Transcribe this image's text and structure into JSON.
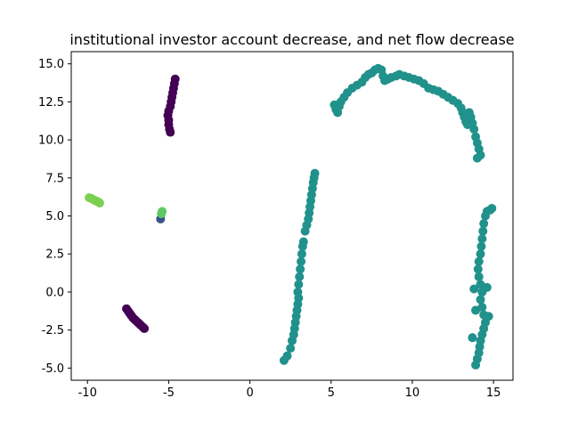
{
  "chart_data": {
    "type": "scatter",
    "title": "institutional investor account decrease, and net flow decrease",
    "xlabel": "",
    "ylabel": "",
    "xlim": [
      -11.0,
      16.2
    ],
    "ylim": [
      -5.8,
      15.8
    ],
    "xticks": [
      -10,
      -5,
      0,
      5,
      10,
      15
    ],
    "yticks": [
      -5.0,
      -2.5,
      0.0,
      2.5,
      5.0,
      7.5,
      10.0,
      12.5,
      15.0
    ],
    "grid": false,
    "legend": "none",
    "series": [
      {
        "color": "#440154",
        "points": [
          [
            -4.6,
            14.0
          ],
          [
            -4.65,
            13.7
          ],
          [
            -4.7,
            13.4
          ],
          [
            -4.75,
            13.1
          ],
          [
            -4.8,
            12.8
          ],
          [
            -4.85,
            12.5
          ],
          [
            -4.9,
            12.2
          ],
          [
            -5.0,
            11.9
          ],
          [
            -5.05,
            11.6
          ],
          [
            -5.0,
            11.3
          ],
          [
            -5.0,
            11.0
          ],
          [
            -4.95,
            10.7
          ],
          [
            -4.9,
            10.5
          ],
          [
            -7.6,
            -1.1
          ],
          [
            -7.5,
            -1.25
          ],
          [
            -7.4,
            -1.4
          ],
          [
            -7.3,
            -1.55
          ],
          [
            -7.2,
            -1.7
          ],
          [
            -7.1,
            -1.8
          ],
          [
            -7.0,
            -1.9
          ],
          [
            -6.9,
            -2.0
          ],
          [
            -6.8,
            -2.1
          ],
          [
            -6.7,
            -2.2
          ],
          [
            -6.6,
            -2.3
          ],
          [
            -6.5,
            -2.4
          ]
        ]
      },
      {
        "color": "#3b528b",
        "points": [
          [
            -5.5,
            4.8
          ]
        ]
      },
      {
        "color": "#21918c",
        "points": [
          [
            5.2,
            12.3
          ],
          [
            5.3,
            12.0
          ],
          [
            5.4,
            11.8
          ],
          [
            5.5,
            12.2
          ],
          [
            5.6,
            12.5
          ],
          [
            5.8,
            12.8
          ],
          [
            6.0,
            13.1
          ],
          [
            6.3,
            13.4
          ],
          [
            6.6,
            13.6
          ],
          [
            6.9,
            13.8
          ],
          [
            7.1,
            14.1
          ],
          [
            7.3,
            14.3
          ],
          [
            7.5,
            14.4
          ],
          [
            7.7,
            14.6
          ],
          [
            7.9,
            14.7
          ],
          [
            8.1,
            14.6
          ],
          [
            8.2,
            14.2
          ],
          [
            8.3,
            13.9
          ],
          [
            8.5,
            14.0
          ],
          [
            8.7,
            14.1
          ],
          [
            9.0,
            14.2
          ],
          [
            9.2,
            14.3
          ],
          [
            9.5,
            14.2
          ],
          [
            9.8,
            14.1
          ],
          [
            10.1,
            14.0
          ],
          [
            10.4,
            13.9
          ],
          [
            10.7,
            13.7
          ],
          [
            11.0,
            13.4
          ],
          [
            11.3,
            13.3
          ],
          [
            11.6,
            13.2
          ],
          [
            11.9,
            13.0
          ],
          [
            12.2,
            12.8
          ],
          [
            12.5,
            12.6
          ],
          [
            12.8,
            12.4
          ],
          [
            13.0,
            12.1
          ],
          [
            13.1,
            11.8
          ],
          [
            13.2,
            11.5
          ],
          [
            13.3,
            11.2
          ],
          [
            13.4,
            11.0
          ],
          [
            13.5,
            11.8
          ],
          [
            13.6,
            11.5
          ],
          [
            13.7,
            11.1
          ],
          [
            13.8,
            10.7
          ],
          [
            13.9,
            10.2
          ],
          [
            14.0,
            9.8
          ],
          [
            14.1,
            9.4
          ],
          [
            14.2,
            9.0
          ],
          [
            14.0,
            8.8
          ],
          [
            2.1,
            -4.5
          ],
          [
            2.3,
            -4.2
          ],
          [
            2.5,
            -3.7
          ],
          [
            2.6,
            -3.2
          ],
          [
            2.7,
            -2.8
          ],
          [
            2.75,
            -2.4
          ],
          [
            2.8,
            -2.0
          ],
          [
            2.85,
            -1.6
          ],
          [
            2.9,
            -1.2
          ],
          [
            2.95,
            -0.8
          ],
          [
            3.0,
            -0.4
          ],
          [
            2.95,
            0.0
          ],
          [
            3.0,
            0.5
          ],
          [
            3.05,
            1.0
          ],
          [
            3.1,
            1.5
          ],
          [
            3.15,
            2.0
          ],
          [
            3.2,
            2.5
          ],
          [
            3.25,
            3.0
          ],
          [
            3.3,
            3.3
          ],
          [
            3.4,
            4.0
          ],
          [
            3.5,
            4.4
          ],
          [
            3.6,
            4.8
          ],
          [
            3.65,
            5.2
          ],
          [
            3.7,
            5.6
          ],
          [
            3.75,
            6.0
          ],
          [
            3.8,
            6.4
          ],
          [
            3.85,
            6.8
          ],
          [
            3.9,
            7.2
          ],
          [
            3.95,
            7.5
          ],
          [
            4.0,
            7.8
          ],
          [
            13.9,
            -4.8
          ],
          [
            14.0,
            -4.4
          ],
          [
            14.1,
            -4.0
          ],
          [
            14.15,
            -3.6
          ],
          [
            14.2,
            -3.2
          ],
          [
            14.3,
            -2.8
          ],
          [
            14.4,
            -2.4
          ],
          [
            14.5,
            -2.0
          ],
          [
            14.4,
            -1.5
          ],
          [
            14.3,
            -1.0
          ],
          [
            14.2,
            -0.5
          ],
          [
            14.3,
            0.0
          ],
          [
            14.2,
            0.5
          ],
          [
            14.1,
            1.0
          ],
          [
            14.05,
            1.5
          ],
          [
            14.1,
            2.0
          ],
          [
            14.2,
            2.5
          ],
          [
            14.25,
            3.0
          ],
          [
            14.3,
            3.5
          ],
          [
            14.35,
            4.0
          ],
          [
            14.4,
            4.5
          ],
          [
            14.5,
            5.0
          ],
          [
            14.6,
            5.3
          ],
          [
            14.8,
            5.4
          ],
          [
            14.9,
            5.5
          ],
          [
            13.8,
            0.2
          ],
          [
            14.6,
            0.3
          ],
          [
            13.9,
            -1.2
          ],
          [
            14.7,
            -1.6
          ],
          [
            13.7,
            -3.0
          ]
        ]
      },
      {
        "color": "#5ec962",
        "points": [
          [
            -5.4,
            5.3
          ],
          [
            -5.45,
            5.15
          ]
        ]
      },
      {
        "color": "#7ad151",
        "points": [
          [
            -9.9,
            6.2
          ],
          [
            -9.75,
            6.15
          ],
          [
            -9.6,
            6.05
          ],
          [
            -9.5,
            6.0
          ],
          [
            -9.4,
            5.95
          ],
          [
            -9.3,
            5.9
          ],
          [
            -9.25,
            5.85
          ]
        ]
      }
    ]
  }
}
